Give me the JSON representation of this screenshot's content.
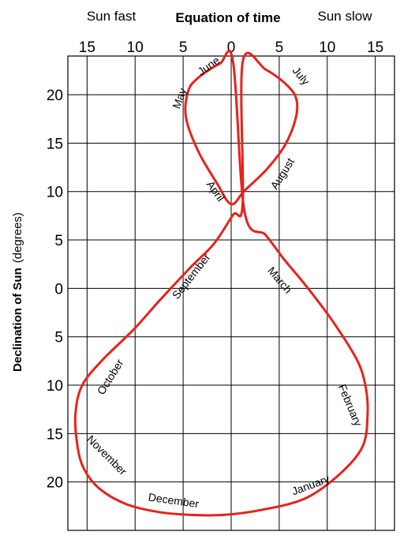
{
  "chart_data": {
    "type": "line",
    "title": "Equation of time",
    "x_header_left": "Sun fast",
    "x_header_right": "Sun slow",
    "ylabel_bold": "Declination of Sun",
    "ylabel_unit": "(degrees)",
    "xlim": [
      -17,
      17
    ],
    "ylim": [
      -25,
      24
    ],
    "x_ticks": [
      -15,
      -10,
      -5,
      0,
      5,
      10,
      15
    ],
    "x_tick_labels": [
      "15",
      "10",
      "5",
      "0",
      "5",
      "10",
      "15"
    ],
    "y_ticks": [
      20,
      15,
      10,
      5,
      0,
      -5,
      -10,
      -15,
      -20
    ],
    "y_tick_labels": [
      "20",
      "15",
      "10",
      "5",
      "0",
      "5",
      "10",
      "15",
      "20"
    ],
    "grid": true,
    "curve_color": "#e8221b",
    "series": [
      {
        "x": [
          1.2,
          3.6,
          5.8,
          6.8,
          6.7,
          5.6,
          3.7,
          1.4,
          0.0,
          -1.5,
          -3.4,
          -4.7,
          -4.5,
          -3.5,
          -1.2,
          0.2,
          1.4,
          3.6,
          5.5,
          7.6,
          10.5,
          13.1,
          14.0,
          14.2,
          13.7,
          11.4,
          7.7,
          3.1,
          -0.8,
          -4.2,
          -7.6,
          -10.9,
          -13.7,
          -15.3,
          -16.0,
          -16.2,
          -15.5,
          -13.4,
          -10.2,
          -7.5,
          -4.3,
          -1.8,
          0.2,
          1.2
        ],
        "y": [
          23.4,
          22.6,
          21.0,
          19.5,
          17.5,
          14.8,
          12.3,
          10.1,
          8.7,
          10.9,
          14.1,
          17.6,
          20.3,
          21.7,
          23.2,
          23.4,
          7.9,
          5.5,
          3.0,
          0.5,
          -3.3,
          -7.4,
          -10.2,
          -13.0,
          -16.3,
          -19.1,
          -21.7,
          -22.9,
          -23.4,
          -23.4,
          -23.1,
          -22.3,
          -20.7,
          -18.7,
          -16.3,
          -12.9,
          -10.0,
          -7.4,
          -4.3,
          -1.3,
          2.1,
          4.6,
          7.6,
          8.8
        ]
      }
    ],
    "month_labels": [
      {
        "text": "June",
        "x": -2.3,
        "y": 22.9,
        "rotate": -35
      },
      {
        "text": "July",
        "x": 7.2,
        "y": 21.9,
        "rotate": 50
      },
      {
        "text": "May",
        "x": -5.3,
        "y": 19.6,
        "rotate": -70
      },
      {
        "text": "August",
        "x": 5.4,
        "y": 11.8,
        "rotate": -58
      },
      {
        "text": "April",
        "x": -1.7,
        "y": 10.0,
        "rotate": 55
      },
      {
        "text": "September",
        "x": -4.1,
        "y": 1.2,
        "rotate": -52
      },
      {
        "text": "March",
        "x": 5.0,
        "y": 0.8,
        "rotate": 50
      },
      {
        "text": "October",
        "x": -12.5,
        "y": -9.2,
        "rotate": -58
      },
      {
        "text": "February",
        "x": 12.3,
        "y": -12.1,
        "rotate": 67
      },
      {
        "text": "November",
        "x": -13.0,
        "y": -17.3,
        "rotate": 45
      },
      {
        "text": "January",
        "x": 8.3,
        "y": -20.4,
        "rotate": -20
      },
      {
        "text": "December",
        "x": -6.0,
        "y": -22.0,
        "rotate": 8
      }
    ]
  }
}
